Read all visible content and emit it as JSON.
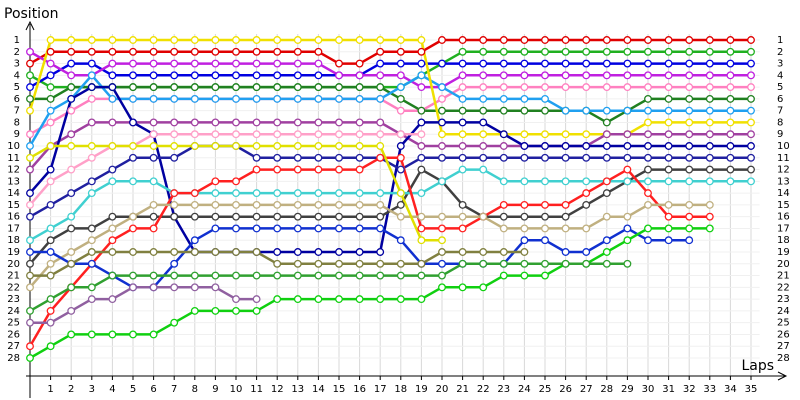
{
  "chart_data": {
    "type": "line",
    "title": "Position",
    "x_label": "Laps",
    "x": [
      0,
      1,
      2,
      3,
      4,
      5,
      6,
      7,
      8,
      9,
      10,
      11,
      12,
      13,
      14,
      15,
      16,
      17,
      18,
      19,
      20,
      21,
      22,
      23,
      24,
      25,
      26,
      27,
      28,
      29,
      30,
      31,
      32,
      33,
      34,
      35
    ],
    "xlim": [
      0,
      36
    ],
    "xticks": [
      1,
      2,
      3,
      4,
      5,
      6,
      7,
      8,
      9,
      10,
      11,
      12,
      13,
      14,
      15,
      16,
      17,
      18,
      19,
      20,
      21,
      22,
      23,
      24,
      25,
      26,
      27,
      28,
      29,
      30,
      31,
      32,
      33,
      34,
      35
    ],
    "ylim": [
      1,
      28
    ],
    "y_inverted": true,
    "yticks": [
      1,
      2,
      3,
      4,
      5,
      6,
      7,
      8,
      9,
      10,
      11,
      12,
      13,
      14,
      15,
      16,
      17,
      18,
      19,
      20,
      21,
      22,
      23,
      24,
      25,
      26,
      27,
      28
    ],
    "grid": true,
    "series": [
      {
        "color": "#e00000",
        "values": [
          3,
          2,
          2,
          2,
          2,
          2,
          2,
          2,
          2,
          2,
          2,
          2,
          2,
          2,
          2,
          3,
          3,
          2,
          2,
          2,
          1,
          1,
          1,
          1,
          1,
          1,
          1,
          1,
          1,
          1,
          1,
          1,
          1,
          1,
          1,
          1
        ]
      },
      {
        "color": "#20b020",
        "values": [
          4,
          5,
          5,
          5,
          5,
          5,
          5,
          5,
          5,
          5,
          5,
          5,
          5,
          5,
          5,
          5,
          5,
          5,
          5,
          4,
          3,
          2,
          2,
          2,
          2,
          2,
          2,
          2,
          2,
          2,
          2,
          2,
          2,
          2,
          2,
          2
        ]
      },
      {
        "color": "#0000e0",
        "values": [
          5,
          4,
          3,
          3,
          4,
          4,
          4,
          4,
          4,
          4,
          4,
          4,
          4,
          4,
          4,
          4,
          4,
          3,
          3,
          3,
          3,
          3,
          3,
          3,
          3,
          3,
          3,
          3,
          3,
          3,
          3,
          3,
          3,
          3,
          3,
          3
        ]
      },
      {
        "color": "#c020e0",
        "values": [
          2,
          3,
          4,
          4,
          3,
          3,
          3,
          3,
          3,
          3,
          3,
          3,
          3,
          3,
          3,
          4,
          4,
          4,
          4,
          5,
          5,
          4,
          4,
          4,
          4,
          4,
          4,
          4,
          4,
          4,
          4,
          4,
          4,
          4,
          4,
          4
        ]
      },
      {
        "color": "#ff80c0",
        "values": [
          9,
          8,
          7,
          6,
          6,
          6,
          6,
          6,
          6,
          6,
          6,
          6,
          6,
          6,
          6,
          6,
          6,
          6,
          7,
          7,
          6,
          5,
          5,
          5,
          5,
          5,
          5,
          5,
          5,
          5,
          5,
          5,
          5,
          5,
          5,
          5
        ]
      },
      {
        "color": "#208020",
        "values": [
          6,
          6,
          5,
          5,
          5,
          5,
          5,
          5,
          5,
          5,
          5,
          5,
          5,
          5,
          5,
          5,
          5,
          5,
          6,
          7,
          7,
          7,
          7,
          7,
          7,
          7,
          7,
          7,
          8,
          7,
          6,
          6,
          6,
          6,
          6,
          6
        ]
      },
      {
        "color": "#20a0f0",
        "values": [
          10,
          7,
          6,
          4,
          6,
          6,
          6,
          6,
          6,
          6,
          6,
          6,
          6,
          6,
          6,
          6,
          6,
          6,
          5,
          4,
          5,
          6,
          6,
          6,
          6,
          6,
          7,
          7,
          7,
          7,
          7,
          7,
          7,
          7,
          7,
          7
        ]
      },
      {
        "color": "#f0e000",
        "values": [
          7,
          1,
          1,
          1,
          1,
          1,
          1,
          1,
          1,
          1,
          1,
          1,
          1,
          1,
          1,
          1,
          1,
          1,
          1,
          1,
          9,
          9,
          9,
          9,
          9,
          9,
          9,
          9,
          9,
          9,
          8,
          8,
          8,
          8,
          8,
          8
        ]
      },
      {
        "color": "#a040a0",
        "values": [
          12,
          10,
          9,
          8,
          8,
          8,
          8,
          8,
          8,
          8,
          8,
          8,
          8,
          8,
          8,
          8,
          8,
          8,
          9,
          10,
          10,
          10,
          10,
          10,
          10,
          10,
          10,
          10,
          9,
          9,
          9,
          9,
          9,
          9,
          9,
          9
        ]
      },
      {
        "color": "#0000a0",
        "values": [
          14,
          12,
          6,
          5,
          5,
          8,
          9,
          16,
          19,
          19,
          19,
          19,
          19,
          19,
          19,
          19,
          19,
          19,
          10,
          8,
          8,
          8,
          8,
          9,
          10,
          10,
          10,
          10,
          10,
          10,
          10,
          10,
          10,
          10,
          10,
          10
        ]
      },
      {
        "color": "#2020a0",
        "values": [
          16,
          15,
          14,
          13,
          12,
          11,
          11,
          11,
          10,
          10,
          10,
          11,
          11,
          11,
          11,
          11,
          11,
          11,
          12,
          11,
          11,
          11,
          11,
          11,
          11,
          11,
          11,
          11,
          11,
          11,
          11,
          11,
          11,
          11,
          11,
          11
        ]
      },
      {
        "color": "#404040",
        "values": [
          20,
          18,
          17,
          17,
          16,
          16,
          16,
          16,
          16,
          16,
          16,
          16,
          16,
          16,
          16,
          16,
          16,
          16,
          15,
          12,
          13,
          15,
          16,
          16,
          16,
          16,
          16,
          15,
          14,
          13,
          12,
          12,
          12,
          12,
          12,
          12
        ]
      },
      {
        "color": "#40d0d0",
        "values": [
          18,
          17,
          16,
          14,
          13,
          13,
          13,
          14,
          14,
          14,
          14,
          14,
          14,
          14,
          14,
          14,
          14,
          14,
          14,
          14,
          13,
          12,
          12,
          13,
          13,
          13,
          13,
          13,
          13,
          13,
          13,
          13,
          13,
          13,
          13,
          13
        ]
      },
      {
        "color": "#ff2020",
        "values": [
          27,
          24,
          22,
          20,
          18,
          17,
          17,
          14,
          14,
          13,
          13,
          12,
          12,
          12,
          12,
          12,
          12,
          11,
          11,
          17,
          17,
          17,
          16,
          15,
          15,
          15,
          15,
          14,
          13,
          12,
          14,
          16,
          16,
          16,
          null,
          null
        ]
      },
      {
        "color": "#c0b080",
        "values": [
          22,
          20,
          19,
          18,
          17,
          16,
          15,
          15,
          15,
          15,
          15,
          15,
          15,
          15,
          15,
          15,
          15,
          15,
          16,
          16,
          16,
          16,
          16,
          17,
          17,
          17,
          17,
          17,
          16,
          16,
          15,
          15,
          15,
          15,
          null,
          null
        ]
      },
      {
        "color": "#1030d0",
        "values": [
          19,
          19,
          20,
          20,
          21,
          22,
          22,
          20,
          18,
          17,
          17,
          17,
          17,
          17,
          17,
          17,
          17,
          17,
          18,
          20,
          20,
          20,
          20,
          20,
          18,
          18,
          19,
          19,
          18,
          17,
          18,
          18,
          18,
          null,
          null,
          null
        ]
      },
      {
        "color": "#10d010",
        "values": [
          28,
          27,
          26,
          26,
          26,
          26,
          26,
          25,
          24,
          24,
          24,
          24,
          23,
          23,
          23,
          23,
          23,
          23,
          23,
          23,
          22,
          22,
          22,
          21,
          21,
          21,
          20,
          20,
          19,
          18,
          17,
          17,
          17,
          17,
          null,
          null
        ]
      },
      {
        "color": "#808040",
        "values": [
          21,
          21,
          20,
          19,
          19,
          19,
          19,
          19,
          19,
          19,
          19,
          19,
          20,
          20,
          20,
          20,
          20,
          20,
          20,
          20,
          19,
          19,
          19,
          19,
          19,
          null,
          null,
          null,
          null,
          null,
          null,
          null,
          null,
          null,
          null,
          null
        ]
      },
      {
        "color": "#30a030",
        "values": [
          24,
          23,
          22,
          22,
          21,
          21,
          21,
          21,
          21,
          21,
          21,
          21,
          21,
          21,
          21,
          21,
          21,
          21,
          21,
          21,
          21,
          20,
          20,
          20,
          20,
          20,
          20,
          20,
          20,
          20,
          null,
          null,
          null,
          null,
          null,
          null
        ]
      },
      {
        "color": "#9060a0",
        "values": [
          25,
          25,
          24,
          23,
          23,
          22,
          22,
          22,
          22,
          22,
          23,
          23,
          null,
          null,
          null,
          null,
          null,
          null,
          null,
          null,
          null,
          null,
          null,
          null,
          null,
          null,
          null,
          null,
          null,
          null,
          null,
          null,
          null,
          null,
          null,
          null
        ]
      },
      {
        "color": "#ffa0c8",
        "values": [
          15,
          13,
          12,
          11,
          10,
          10,
          9,
          9,
          9,
          9,
          9,
          9,
          9,
          9,
          9,
          9,
          9,
          9,
          9,
          9,
          null,
          null,
          null,
          null,
          null,
          null,
          null,
          null,
          null,
          null,
          null,
          null,
          null,
          null,
          null,
          null
        ]
      },
      {
        "color": "#e0e000",
        "values": [
          11,
          10,
          10,
          10,
          10,
          10,
          10,
          10,
          10,
          10,
          10,
          10,
          10,
          10,
          10,
          10,
          10,
          10,
          14,
          18,
          18,
          null,
          null,
          null,
          null,
          null,
          null,
          null,
          null,
          null,
          null,
          null,
          null,
          null,
          null,
          null
        ]
      }
    ]
  }
}
